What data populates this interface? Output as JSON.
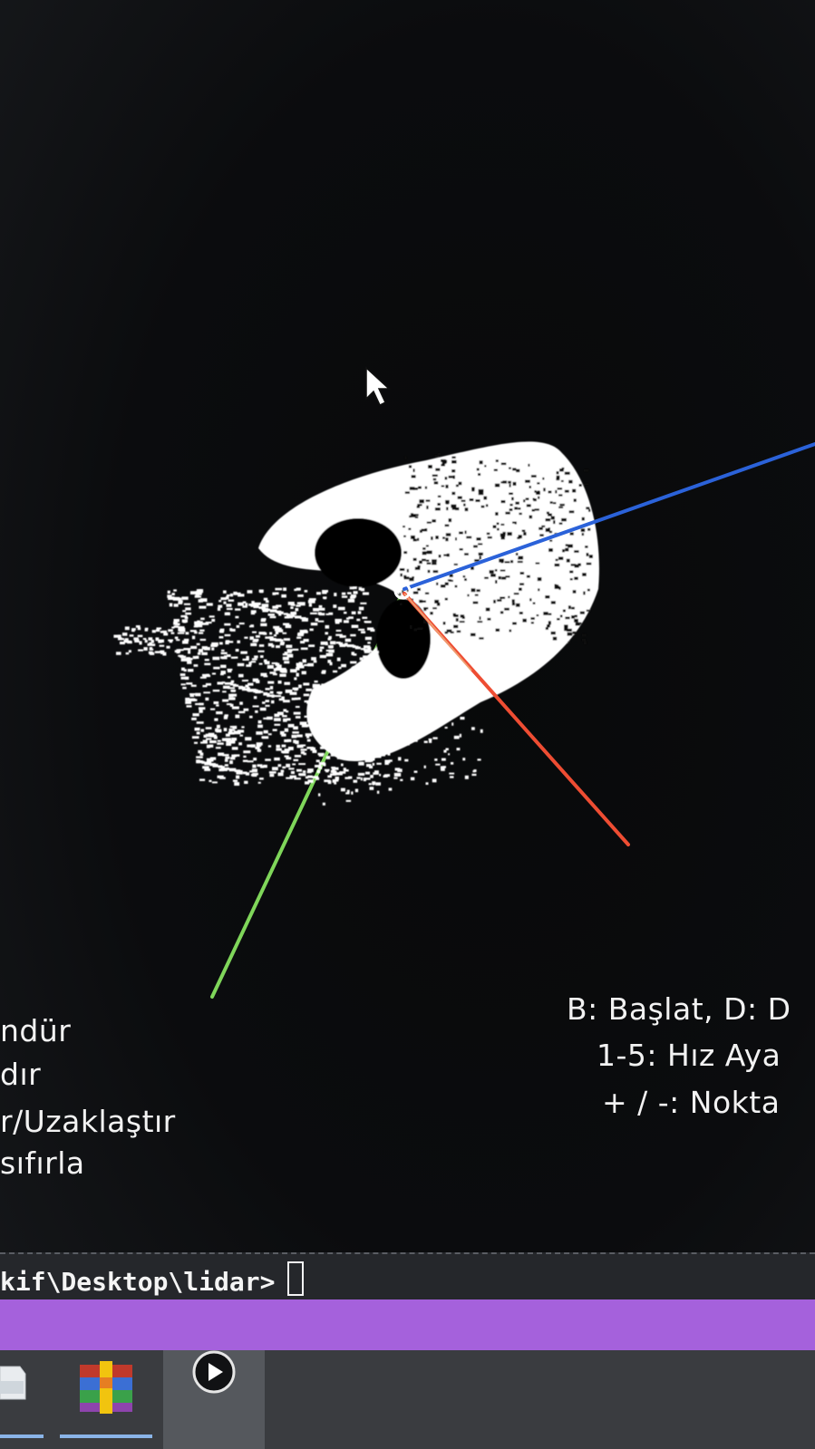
{
  "help_left": {
    "lines": [
      "ndür",
      "dır",
      "r/Uzaklaştır",
      "sıfırla"
    ]
  },
  "help_right": {
    "lines": [
      "B: Başlat, D: D",
      "1-5: Hız Aya",
      "+ / -: Nokta"
    ]
  },
  "terminal": {
    "prompt": "kif\\Desktop\\lidar>"
  },
  "axes": {
    "x_color": "#ee4d33",
    "y_color": "#7fd65a",
    "z_color": "#2b62d9"
  },
  "colors": {
    "points": "#ffffff",
    "status_bar": "#a561dc",
    "taskbar": "#3a3c40"
  },
  "taskbar": {
    "items": [
      {
        "icon": "file-explorer-icon"
      },
      {
        "icon": "winrar-icon"
      },
      {
        "icon": "media-player-icon"
      }
    ]
  }
}
